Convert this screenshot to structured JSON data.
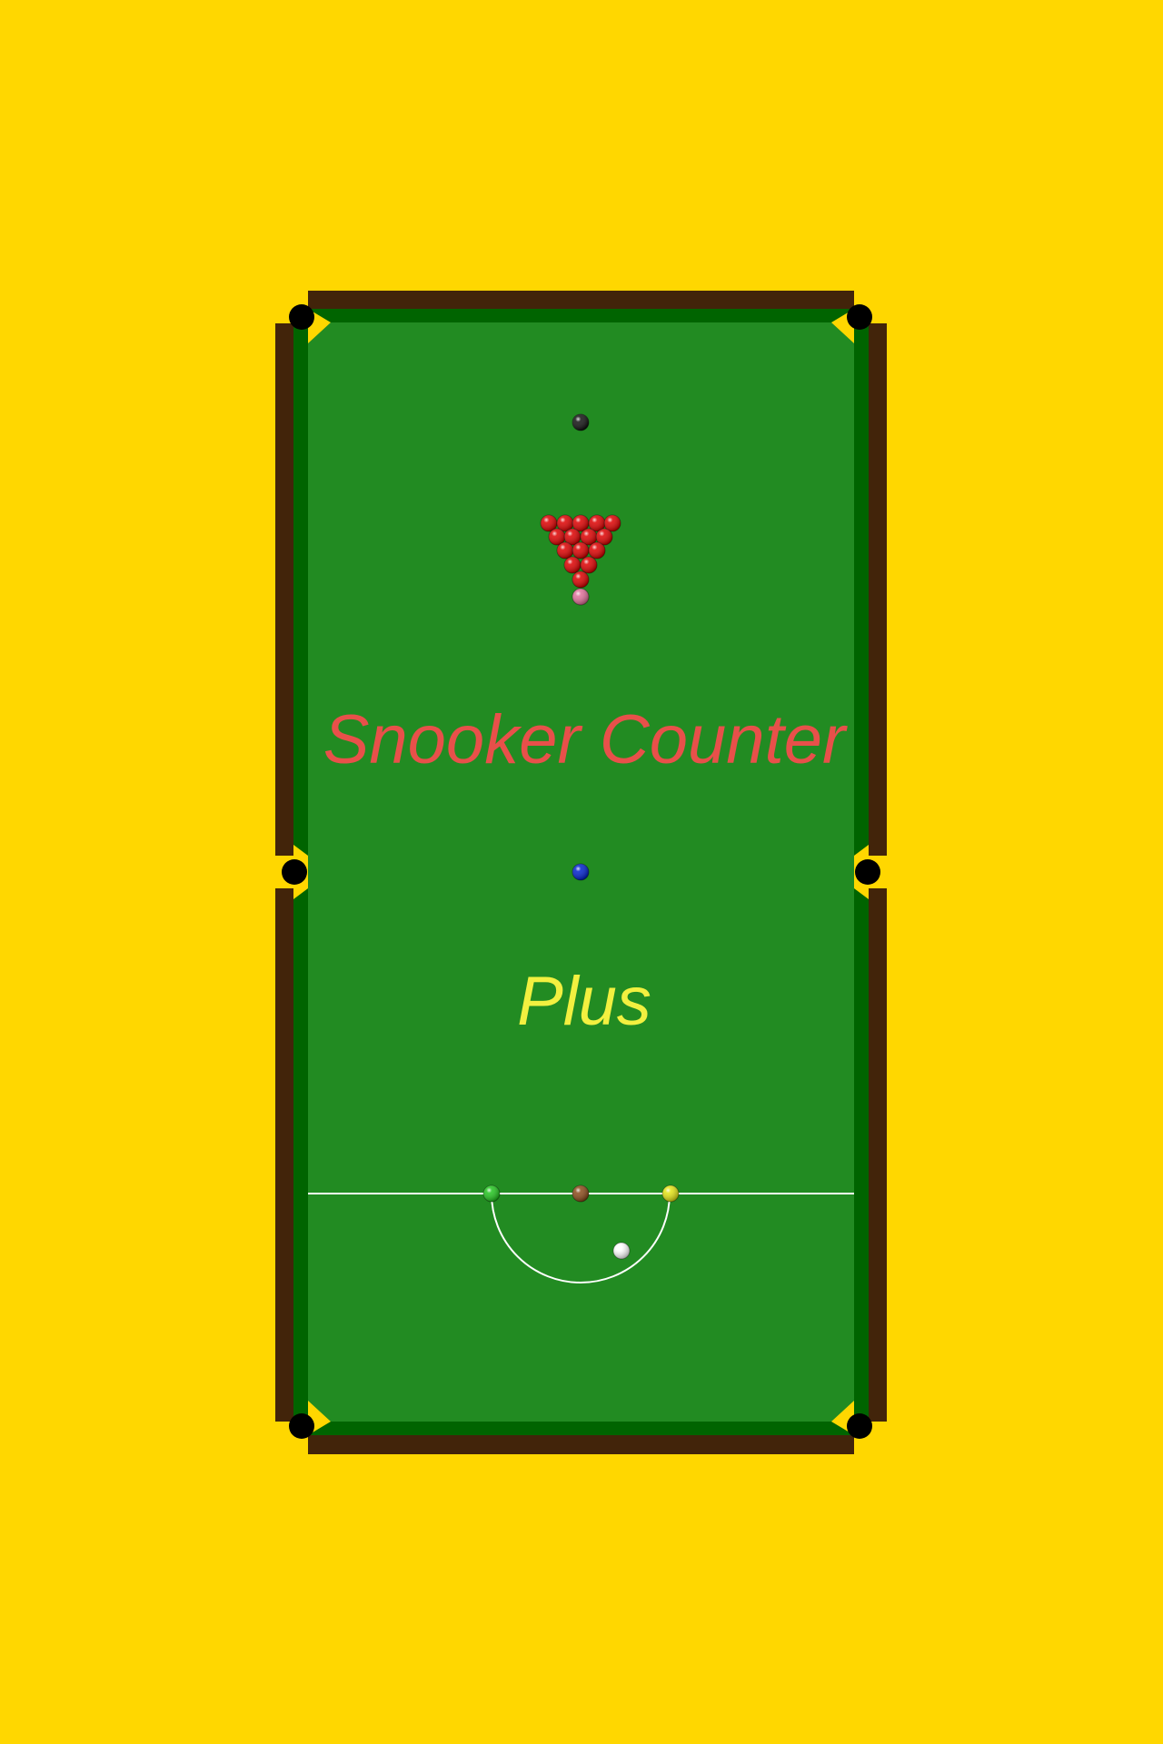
{
  "splash": {
    "title": "Snooker Counter",
    "subtitle": "Plus"
  },
  "colors": {
    "background": "#FFD700",
    "cushion_wood": "#42240A",
    "rail_green": "#006400",
    "cloth": "#228B22",
    "pocket": "#000000",
    "line": "#FFFFFF",
    "title": "#E8504A",
    "subtitle": "#F2F040"
  },
  "balls": {
    "black": "#111111",
    "pink": "#E0709A",
    "red": "#DD0000",
    "blue": "#0022CC",
    "green": "#22C41E",
    "brown": "#8B4A1A",
    "yellow": "#E4E414",
    "cue": "#FFFFFF"
  },
  "reds_count": 15
}
